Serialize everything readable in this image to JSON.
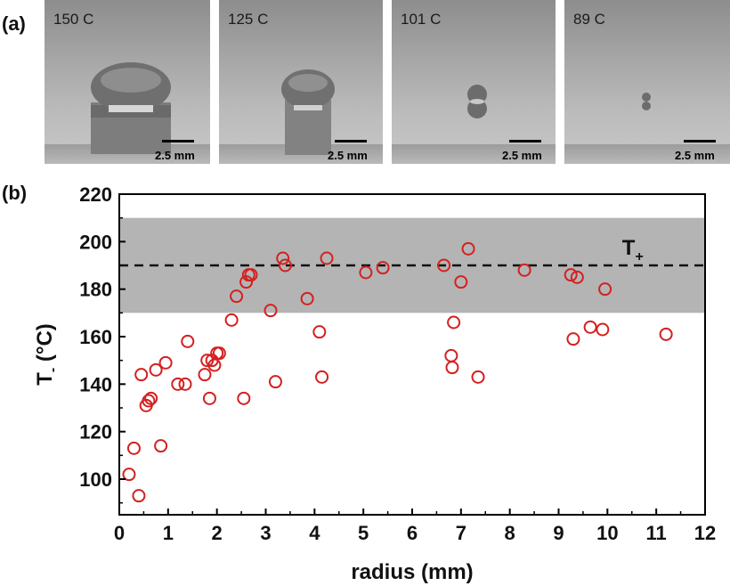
{
  "panel_a": {
    "label": "(a)",
    "frames": [
      {
        "temperature": "150 C",
        "scale": "2.5 mm"
      },
      {
        "temperature": "125 C",
        "scale": "2.5 mm"
      },
      {
        "temperature": "101 C",
        "scale": "2.5 mm"
      },
      {
        "temperature": "89 C",
        "scale": "2.5 mm"
      }
    ]
  },
  "panel_b": {
    "label": "(b)"
  },
  "chart_data": {
    "type": "scatter",
    "xlabel": "radius (mm)",
    "ylabel": "T (°C)",
    "ylabel_main": "T",
    "ylabel_sub": "-",
    "ylabel_unit": " (°C)",
    "xlim": [
      0,
      12
    ],
    "ylim": [
      85,
      220
    ],
    "xticks": [
      0,
      1,
      2,
      3,
      4,
      5,
      6,
      7,
      8,
      9,
      10,
      11,
      12
    ],
    "yticks": [
      100,
      120,
      140,
      160,
      180,
      200,
      220
    ],
    "band": [
      170,
      210
    ],
    "band_color": "#b4b4b4",
    "reference_line": {
      "y": 190,
      "label": "T",
      "label_sub": "+"
    },
    "marker_color": "#d42020",
    "grid": false,
    "series": [
      {
        "x": [
          0.2,
          0.3,
          0.4,
          0.45,
          0.55,
          0.6,
          0.65,
          0.75,
          0.85,
          0.95,
          1.2,
          1.35,
          1.4,
          1.75,
          1.8,
          1.85,
          1.9,
          1.95,
          2.0,
          2.05,
          2.3,
          2.4,
          2.55,
          2.6,
          2.65,
          2.7,
          3.1,
          3.2,
          3.35,
          3.4,
          3.85,
          4.1,
          4.15,
          4.25,
          5.05,
          5.4,
          6.65,
          6.8,
          6.82,
          6.85,
          7.0,
          7.15,
          7.35,
          8.3,
          9.25,
          9.3,
          9.38,
          9.65,
          9.9,
          9.95,
          11.2
        ],
        "y": [
          102,
          113,
          93,
          144,
          131,
          133,
          134,
          146,
          114,
          149,
          140,
          140,
          158,
          144,
          150,
          134,
          150,
          148,
          153,
          153,
          167,
          177,
          134,
          183,
          186,
          186,
          171,
          141,
          193,
          190,
          176,
          162,
          143,
          193,
          187,
          189,
          190,
          152,
          147,
          166,
          183,
          197,
          143,
          188,
          186,
          159,
          185,
          164,
          163,
          180,
          161
        ]
      }
    ]
  }
}
